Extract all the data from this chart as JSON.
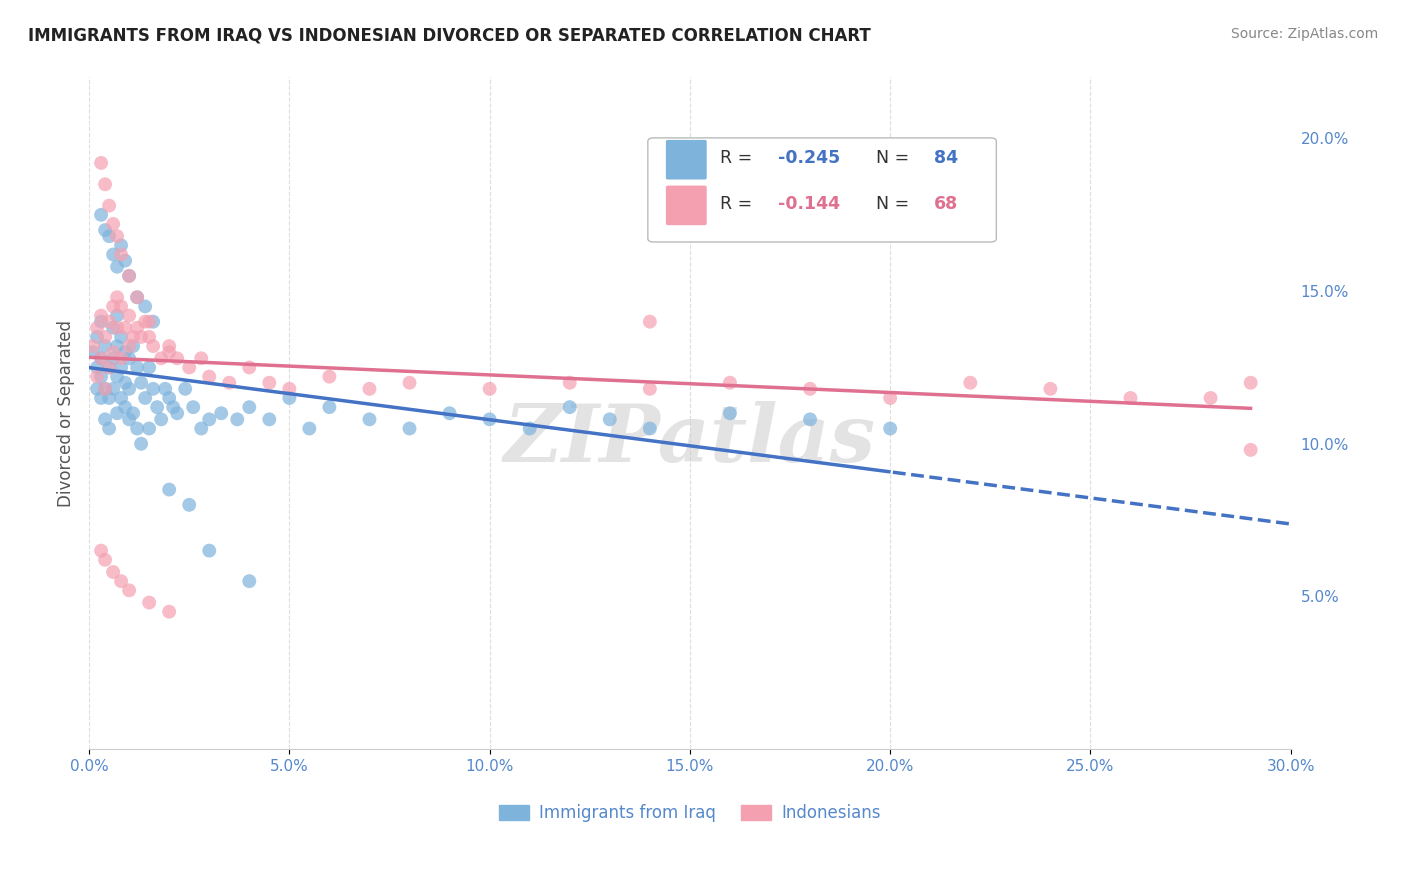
{
  "title": "IMMIGRANTS FROM IRAQ VS INDONESIAN DIVORCED OR SEPARATED CORRELATION CHART",
  "source": "Source: ZipAtlas.com",
  "ylabel": "Divorced or Separated",
  "right_ytick_vals": [
    0.2,
    0.15,
    0.1,
    0.05
  ],
  "xlim": [
    0.0,
    0.3
  ],
  "ylim": [
    0.0,
    0.22
  ],
  "color_blue": "#7EB3DC",
  "color_pink": "#F4A0B0",
  "trend_blue": "#4472C4",
  "trend_pink": "#E07090",
  "watermark": "ZIPatlas",
  "iraq_x": [
    0.001,
    0.002,
    0.002,
    0.002,
    0.003,
    0.003,
    0.003,
    0.003,
    0.004,
    0.004,
    0.004,
    0.005,
    0.005,
    0.005,
    0.006,
    0.006,
    0.006,
    0.007,
    0.007,
    0.007,
    0.007,
    0.008,
    0.008,
    0.008,
    0.009,
    0.009,
    0.009,
    0.01,
    0.01,
    0.01,
    0.011,
    0.011,
    0.012,
    0.012,
    0.013,
    0.013,
    0.014,
    0.015,
    0.015,
    0.016,
    0.017,
    0.018,
    0.019,
    0.02,
    0.021,
    0.022,
    0.024,
    0.026,
    0.028,
    0.03,
    0.033,
    0.037,
    0.04,
    0.045,
    0.05,
    0.055,
    0.06,
    0.07,
    0.08,
    0.09,
    0.1,
    0.11,
    0.12,
    0.13,
    0.14,
    0.16,
    0.18,
    0.2,
    0.003,
    0.004,
    0.005,
    0.006,
    0.007,
    0.008,
    0.009,
    0.01,
    0.012,
    0.014,
    0.016,
    0.02,
    0.025,
    0.03,
    0.04
  ],
  "iraq_y": [
    0.13,
    0.135,
    0.125,
    0.118,
    0.14,
    0.128,
    0.122,
    0.115,
    0.132,
    0.118,
    0.108,
    0.125,
    0.115,
    0.105,
    0.138,
    0.128,
    0.118,
    0.142,
    0.132,
    0.122,
    0.11,
    0.135,
    0.125,
    0.115,
    0.13,
    0.12,
    0.112,
    0.128,
    0.118,
    0.108,
    0.132,
    0.11,
    0.125,
    0.105,
    0.12,
    0.1,
    0.115,
    0.125,
    0.105,
    0.118,
    0.112,
    0.108,
    0.118,
    0.115,
    0.112,
    0.11,
    0.118,
    0.112,
    0.105,
    0.108,
    0.11,
    0.108,
    0.112,
    0.108,
    0.115,
    0.105,
    0.112,
    0.108,
    0.105,
    0.11,
    0.108,
    0.105,
    0.112,
    0.108,
    0.105,
    0.11,
    0.108,
    0.105,
    0.175,
    0.17,
    0.168,
    0.162,
    0.158,
    0.165,
    0.16,
    0.155,
    0.148,
    0.145,
    0.14,
    0.085,
    0.08,
    0.065,
    0.055
  ],
  "indo_x": [
    0.001,
    0.002,
    0.002,
    0.003,
    0.003,
    0.004,
    0.004,
    0.005,
    0.005,
    0.006,
    0.006,
    0.007,
    0.007,
    0.008,
    0.008,
    0.009,
    0.01,
    0.01,
    0.011,
    0.012,
    0.013,
    0.014,
    0.015,
    0.016,
    0.018,
    0.02,
    0.022,
    0.025,
    0.028,
    0.03,
    0.035,
    0.04,
    0.045,
    0.05,
    0.06,
    0.07,
    0.08,
    0.1,
    0.12,
    0.14,
    0.16,
    0.18,
    0.2,
    0.22,
    0.24,
    0.26,
    0.28,
    0.29,
    0.003,
    0.004,
    0.005,
    0.006,
    0.007,
    0.008,
    0.01,
    0.012,
    0.015,
    0.02,
    0.003,
    0.004,
    0.006,
    0.008,
    0.01,
    0.015,
    0.02,
    0.14,
    0.29
  ],
  "indo_y": [
    0.132,
    0.138,
    0.122,
    0.142,
    0.128,
    0.135,
    0.118,
    0.14,
    0.125,
    0.145,
    0.13,
    0.148,
    0.138,
    0.145,
    0.128,
    0.138,
    0.142,
    0.132,
    0.135,
    0.138,
    0.135,
    0.14,
    0.135,
    0.132,
    0.128,
    0.13,
    0.128,
    0.125,
    0.128,
    0.122,
    0.12,
    0.125,
    0.12,
    0.118,
    0.122,
    0.118,
    0.12,
    0.118,
    0.12,
    0.118,
    0.12,
    0.118,
    0.115,
    0.12,
    0.118,
    0.115,
    0.115,
    0.12,
    0.192,
    0.185,
    0.178,
    0.172,
    0.168,
    0.162,
    0.155,
    0.148,
    0.14,
    0.132,
    0.065,
    0.062,
    0.058,
    0.055,
    0.052,
    0.048,
    0.045,
    0.14,
    0.098
  ]
}
